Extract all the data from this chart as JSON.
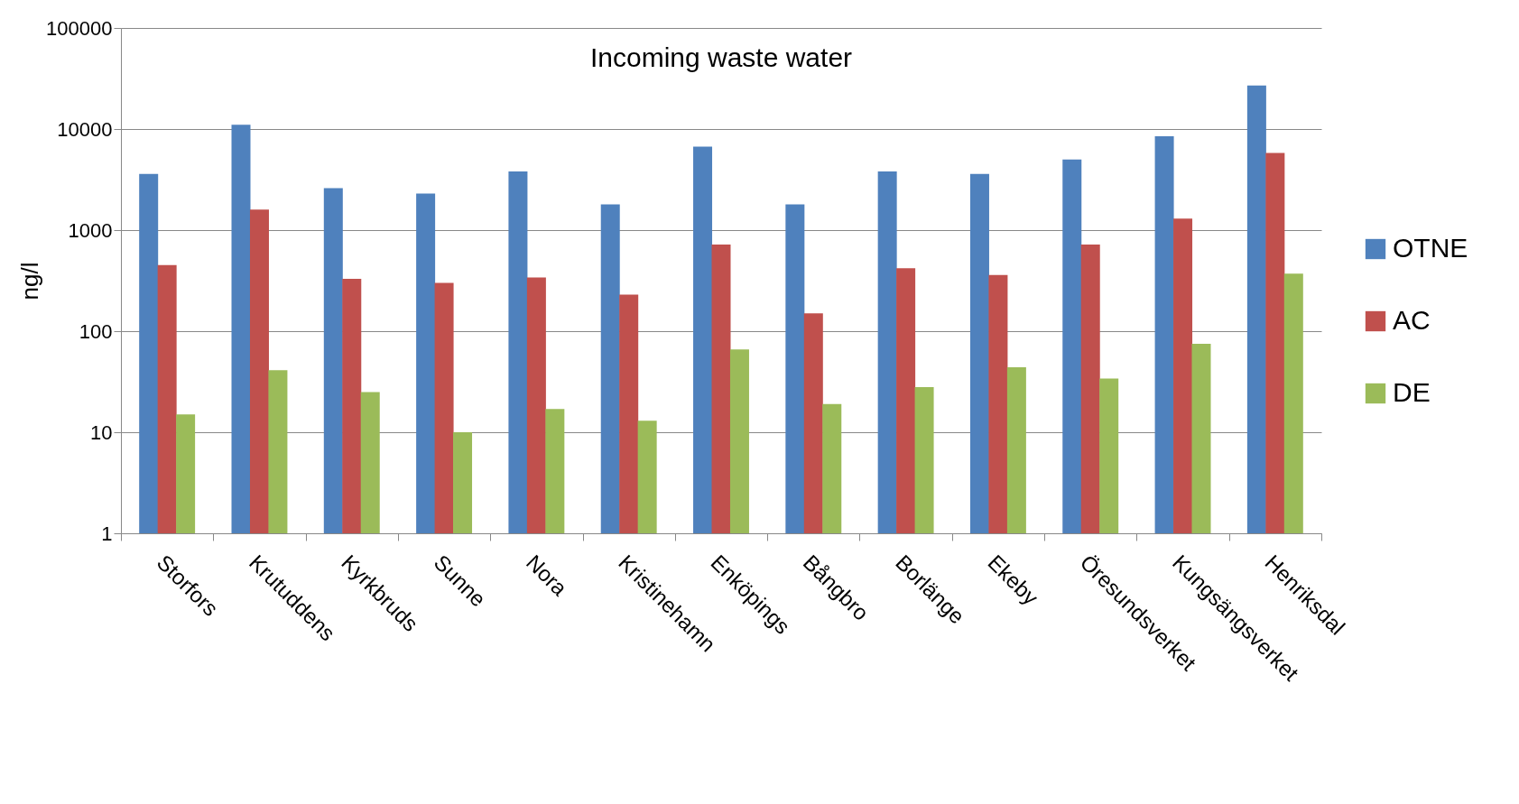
{
  "chart_data": {
    "type": "bar",
    "title": "Incoming waste water",
    "ylabel": "ng/l",
    "categories": [
      "Storfors",
      "Krutuddens",
      "Kyrkbruds",
      "Sunne",
      "Nora",
      "Kristinehamn",
      "Enköpings",
      "Bångbro",
      "Borlänge",
      "Ekeby",
      "Öresundsverket",
      "Kungsängsverket",
      "Henriksdal"
    ],
    "series": [
      {
        "name": "OTNE",
        "color": "#4f81bd",
        "values": [
          3600,
          11000,
          2600,
          2300,
          3800,
          1800,
          6700,
          1800,
          3800,
          3600,
          5000,
          8500,
          27000
        ]
      },
      {
        "name": "AC",
        "color": "#c0504d",
        "values": [
          450,
          1600,
          330,
          300,
          340,
          230,
          720,
          150,
          420,
          360,
          720,
          1300,
          5800
        ]
      },
      {
        "name": "DE",
        "color": "#9bbb59",
        "values": [
          15,
          41,
          25,
          10,
          17,
          13,
          66,
          19,
          28,
          44,
          34,
          75,
          370
        ]
      }
    ],
    "log": true,
    "ylim": [
      1,
      100000
    ],
    "yticks": [
      1,
      10,
      100,
      1000,
      10000,
      100000
    ],
    "grid": "y",
    "legend": "right"
  }
}
